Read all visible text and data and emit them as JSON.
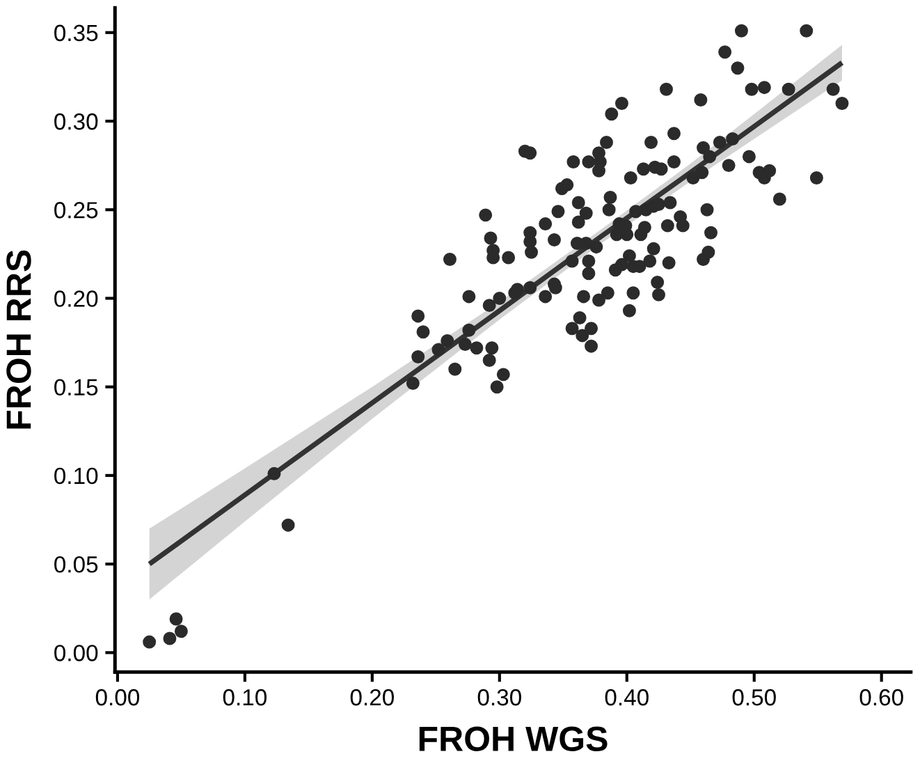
{
  "chart_data": {
    "type": "scatter",
    "xlabel": "FROH WGS",
    "ylabel": "FROH RRS",
    "xlim": [
      -0.002,
      0.623
    ],
    "ylim": [
      -0.011,
      0.364
    ],
    "xticks": [
      {
        "value": 0,
        "label": "0.00"
      },
      {
        "value": 0.1,
        "label": "0.10"
      },
      {
        "value": 0.2,
        "label": "0.20"
      },
      {
        "value": 0.3,
        "label": "0.30"
      },
      {
        "value": 0.4,
        "label": "0.40"
      },
      {
        "value": 0.5,
        "label": "0.50"
      },
      {
        "value": 0.6,
        "label": "0.60"
      }
    ],
    "yticks": [
      {
        "value": 0,
        "label": "0.00"
      },
      {
        "value": 0.05,
        "label": "0.05"
      },
      {
        "value": 0.1,
        "label": "0.10"
      },
      {
        "value": 0.15,
        "label": "0.15"
      },
      {
        "value": 0.2,
        "label": "0.20"
      },
      {
        "value": 0.25,
        "label": "0.25"
      },
      {
        "value": 0.3,
        "label": "0.30"
      },
      {
        "value": 0.35,
        "label": "0.35"
      }
    ],
    "grid": false,
    "legend": false,
    "series": [
      {
        "color": "#2b2b2b",
        "marker": "circle",
        "x": [
          0.025,
          0.041,
          0.046,
          0.05,
          0.123,
          0.134,
          0.232,
          0.236,
          0.236,
          0.24,
          0.252,
          0.259,
          0.261,
          0.265,
          0.273,
          0.276,
          0.276,
          0.282,
          0.289,
          0.292,
          0.293,
          0.294,
          0.292,
          0.295,
          0.295,
          0.298,
          0.3,
          0.303,
          0.307,
          0.312,
          0.314,
          0.32,
          0.324,
          0.324,
          0.324,
          0.325,
          0.324,
          0.336,
          0.336,
          0.343,
          0.343,
          0.344,
          0.346,
          0.349,
          0.353,
          0.357,
          0.357,
          0.358,
          0.362,
          0.362,
          0.363,
          0.361,
          0.365,
          0.366,
          0.368,
          0.368,
          0.37,
          0.37,
          0.37,
          0.372,
          0.372,
          0.376,
          0.378,
          0.378,
          0.379,
          0.378,
          0.384,
          0.385,
          0.387,
          0.386,
          0.388,
          0.391,
          0.392,
          0.394,
          0.396,
          0.396,
          0.399,
          0.4,
          0.402,
          0.402,
          0.403,
          0.405,
          0.405,
          0.407,
          0.41,
          0.411,
          0.413,
          0.414,
          0.415,
          0.418,
          0.419,
          0.421,
          0.421,
          0.422,
          0.424,
          0.425,
          0.425,
          0.427,
          0.431,
          0.432,
          0.434,
          0.433,
          0.437,
          0.437,
          0.442,
          0.444,
          0.452,
          0.458,
          0.459,
          0.46,
          0.46,
          0.463,
          0.464,
          0.466,
          0.465,
          0.473,
          0.477,
          0.48,
          0.483,
          0.487,
          0.49,
          0.496,
          0.498,
          0.504,
          0.508,
          0.508,
          0.512,
          0.52,
          0.527,
          0.541,
          0.549,
          0.562,
          0.569
        ],
        "values": [
          0.006,
          0.008,
          0.019,
          0.012,
          0.101,
          0.072,
          0.152,
          0.19,
          0.167,
          0.181,
          0.171,
          0.176,
          0.222,
          0.16,
          0.174,
          0.201,
          0.182,
          0.172,
          0.247,
          0.196,
          0.234,
          0.172,
          0.165,
          0.227,
          0.223,
          0.15,
          0.2,
          0.157,
          0.223,
          0.203,
          0.205,
          0.283,
          0.282,
          0.237,
          0.232,
          0.226,
          0.206,
          0.201,
          0.242,
          0.233,
          0.208,
          0.206,
          0.249,
          0.262,
          0.264,
          0.221,
          0.183,
          0.277,
          0.254,
          0.243,
          0.189,
          0.231,
          0.179,
          0.201,
          0.231,
          0.248,
          0.277,
          0.221,
          0.214,
          0.183,
          0.173,
          0.229,
          0.199,
          0.282,
          0.277,
          0.272,
          0.288,
          0.203,
          0.257,
          0.25,
          0.304,
          0.216,
          0.236,
          0.242,
          0.31,
          0.219,
          0.241,
          0.236,
          0.224,
          0.193,
          0.268,
          0.203,
          0.218,
          0.249,
          0.218,
          0.236,
          0.273,
          0.24,
          0.25,
          0.221,
          0.288,
          0.252,
          0.228,
          0.274,
          0.209,
          0.202,
          0.253,
          0.273,
          0.318,
          0.241,
          0.254,
          0.22,
          0.277,
          0.293,
          0.246,
          0.241,
          0.268,
          0.312,
          0.271,
          0.285,
          0.222,
          0.25,
          0.226,
          0.237,
          0.28,
          0.288,
          0.339,
          0.275,
          0.29,
          0.33,
          0.351,
          0.28,
          0.318,
          0.271,
          0.268,
          0.319,
          0.272,
          0.256,
          0.318,
          0.351,
          0.268,
          0.318,
          0.31
        ]
      },
      {
        "type": "line",
        "color": "#333333",
        "marker": "none",
        "x": [
          0.025,
          0.1,
          0.2,
          0.3,
          0.38,
          0.45,
          0.5,
          0.569
        ],
        "values": [
          0.05,
          0.089,
          0.141,
          0.193,
          0.235,
          0.271,
          0.297,
          0.333
        ],
        "lower": [
          0.03,
          0.074,
          0.132,
          0.188,
          0.231,
          0.266,
          0.29,
          0.323
        ],
        "upper": [
          0.07,
          0.104,
          0.15,
          0.198,
          0.239,
          0.276,
          0.304,
          0.343
        ]
      }
    ]
  }
}
